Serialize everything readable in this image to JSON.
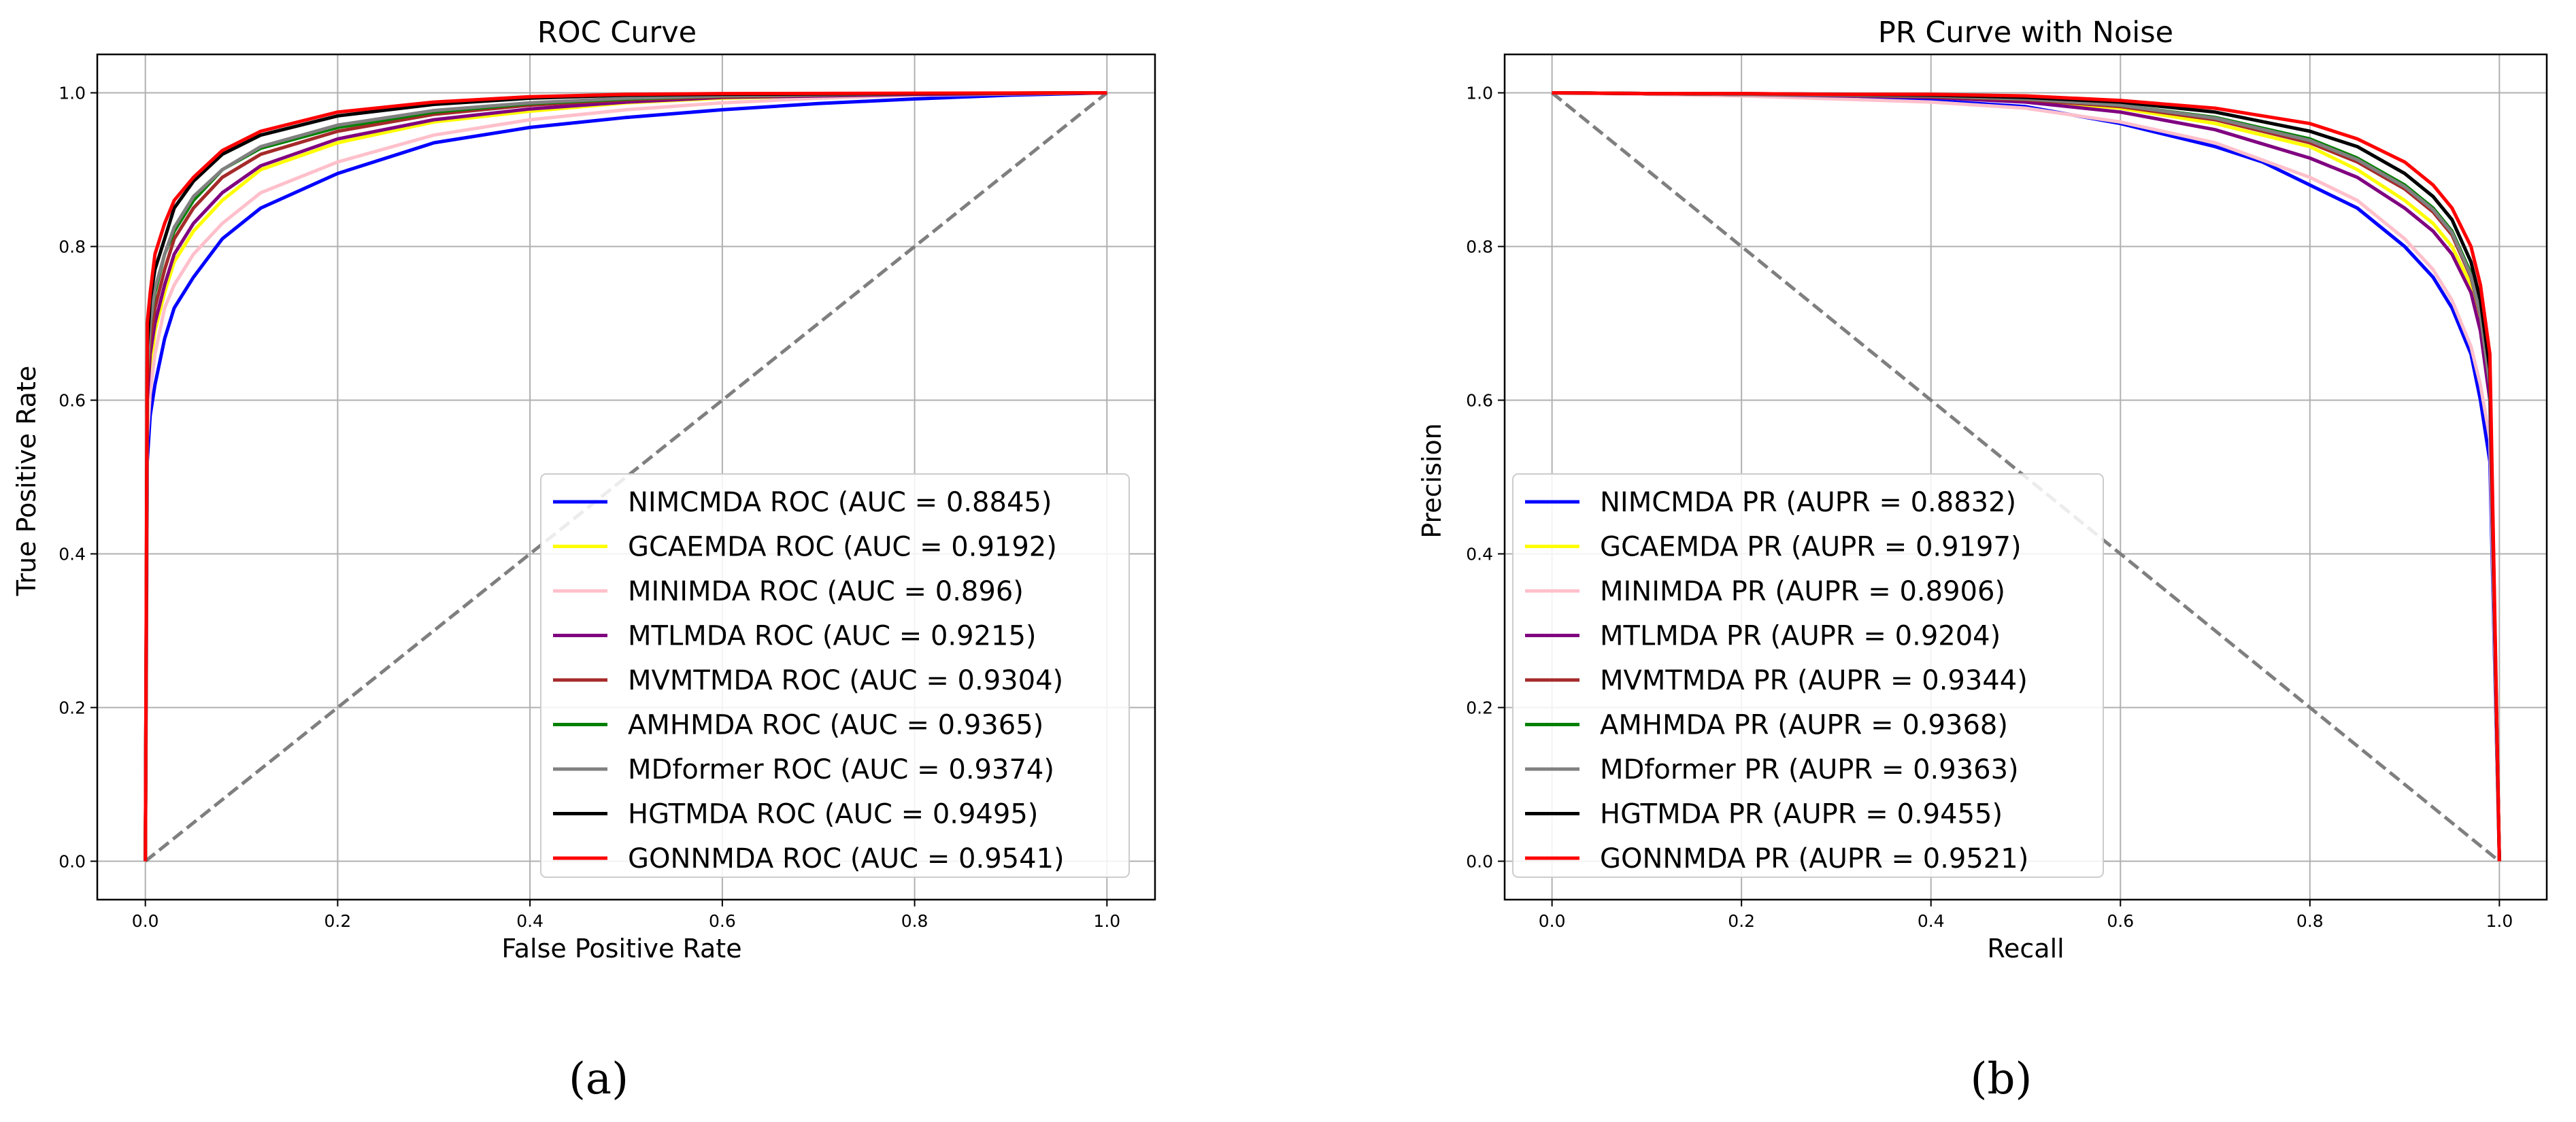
{
  "chart_data": [
    {
      "type": "line",
      "title": "ROC Curve",
      "xlabel": "False Positive Rate",
      "ylabel": "True Positive Rate",
      "xlim": [
        -0.05,
        1.05
      ],
      "ylim": [
        -0.05,
        1.05
      ],
      "xticks": [
        "0.0",
        "0.2",
        "0.4",
        "0.6",
        "0.8",
        "1.0"
      ],
      "yticks": [
        "0.0",
        "0.2",
        "0.4",
        "0.6",
        "0.8",
        "1.0"
      ],
      "grid": true,
      "legend_position": "lower-right",
      "caption": "(a)",
      "diagonal": {
        "x": [
          0,
          1
        ],
        "y": [
          0,
          1
        ],
        "color": "#7f7f7f",
        "style": "dashed"
      },
      "series": [
        {
          "name": "NIMCMDA ROC (AUC = 0.8845)",
          "color": "#0000ff",
          "x": [
            0,
            0.002,
            0.005,
            0.01,
            0.02,
            0.03,
            0.05,
            0.08,
            0.12,
            0.2,
            0.3,
            0.4,
            0.5,
            0.6,
            0.7,
            0.8,
            0.9,
            1.0
          ],
          "y": [
            0,
            0.52,
            0.58,
            0.62,
            0.68,
            0.72,
            0.76,
            0.81,
            0.85,
            0.895,
            0.935,
            0.955,
            0.968,
            0.978,
            0.986,
            0.992,
            0.997,
            1.0
          ]
        },
        {
          "name": "GCAEMDA ROC (AUC = 0.9192)",
          "color": "#ffff00",
          "x": [
            0,
            0.002,
            0.005,
            0.01,
            0.02,
            0.03,
            0.05,
            0.08,
            0.12,
            0.2,
            0.3,
            0.4,
            0.5,
            0.6,
            0.8,
            1.0
          ],
          "y": [
            0,
            0.58,
            0.64,
            0.69,
            0.74,
            0.78,
            0.82,
            0.86,
            0.9,
            0.935,
            0.962,
            0.976,
            0.987,
            0.993,
            0.998,
            1.0
          ]
        },
        {
          "name": "MINIMDA ROC (AUC = 0.896)",
          "color": "#ffc0cb",
          "x": [
            0,
            0.002,
            0.005,
            0.01,
            0.02,
            0.03,
            0.05,
            0.08,
            0.12,
            0.2,
            0.3,
            0.4,
            0.5,
            0.6,
            0.7,
            0.8,
            1.0
          ],
          "y": [
            0,
            0.55,
            0.61,
            0.66,
            0.72,
            0.75,
            0.79,
            0.83,
            0.87,
            0.91,
            0.945,
            0.965,
            0.978,
            0.987,
            0.993,
            0.997,
            1.0
          ]
        },
        {
          "name": "MTLMDA ROC (AUC = 0.9215)",
          "color": "#800080",
          "x": [
            0,
            0.002,
            0.005,
            0.01,
            0.02,
            0.03,
            0.05,
            0.08,
            0.12,
            0.2,
            0.3,
            0.4,
            0.5,
            0.6,
            0.8,
            1.0
          ],
          "y": [
            0,
            0.6,
            0.66,
            0.7,
            0.75,
            0.79,
            0.83,
            0.87,
            0.905,
            0.94,
            0.965,
            0.979,
            0.988,
            0.994,
            0.998,
            1.0
          ]
        },
        {
          "name": "MVMTMDA ROC (AUC = 0.9304)",
          "color": "#a52a2a",
          "x": [
            0,
            0.002,
            0.005,
            0.01,
            0.02,
            0.03,
            0.05,
            0.08,
            0.12,
            0.2,
            0.3,
            0.4,
            0.5,
            0.6,
            0.8,
            1.0
          ],
          "y": [
            0,
            0.62,
            0.68,
            0.72,
            0.77,
            0.81,
            0.85,
            0.89,
            0.92,
            0.95,
            0.972,
            0.984,
            0.991,
            0.995,
            0.999,
            1.0
          ]
        },
        {
          "name": "AMHMDA ROC (AUC = 0.9365)",
          "color": "#008000",
          "x": [
            0,
            0.002,
            0.005,
            0.01,
            0.02,
            0.03,
            0.05,
            0.08,
            0.12,
            0.2,
            0.3,
            0.4,
            0.5,
            0.6,
            0.8,
            1.0
          ],
          "y": [
            0,
            0.64,
            0.7,
            0.74,
            0.79,
            0.82,
            0.86,
            0.9,
            0.928,
            0.955,
            0.975,
            0.986,
            0.992,
            0.996,
            0.999,
            1.0
          ]
        },
        {
          "name": "MDformer ROC (AUC = 0.9374)",
          "color": "#808080",
          "x": [
            0,
            0.002,
            0.005,
            0.01,
            0.02,
            0.03,
            0.05,
            0.08,
            0.12,
            0.2,
            0.3,
            0.4,
            0.5,
            0.6,
            0.8,
            1.0
          ],
          "y": [
            0,
            0.64,
            0.7,
            0.745,
            0.79,
            0.825,
            0.865,
            0.9,
            0.93,
            0.958,
            0.977,
            0.987,
            0.993,
            0.996,
            0.999,
            1.0
          ]
        },
        {
          "name": "HGTMDA ROC (AUC = 0.9495)",
          "color": "#000000",
          "x": [
            0,
            0.002,
            0.005,
            0.01,
            0.02,
            0.03,
            0.05,
            0.08,
            0.12,
            0.2,
            0.3,
            0.4,
            0.5,
            0.6,
            0.8,
            1.0
          ],
          "y": [
            0,
            0.67,
            0.73,
            0.77,
            0.81,
            0.85,
            0.885,
            0.92,
            0.945,
            0.97,
            0.985,
            0.993,
            0.997,
            0.998,
            0.999,
            1.0
          ]
        },
        {
          "name": "GONNMDA ROC (AUC = 0.9541)",
          "color": "#ff0000",
          "x": [
            0,
            0.002,
            0.005,
            0.01,
            0.02,
            0.03,
            0.05,
            0.08,
            0.12,
            0.2,
            0.3,
            0.4,
            0.5,
            0.6,
            0.8,
            1.0
          ],
          "y": [
            0,
            0.7,
            0.74,
            0.79,
            0.83,
            0.86,
            0.89,
            0.925,
            0.95,
            0.975,
            0.988,
            0.995,
            0.998,
            0.999,
            0.9995,
            1.0
          ]
        }
      ]
    },
    {
      "type": "line",
      "title": "PR Curve with Noise",
      "xlabel": "Recall",
      "ylabel": "Precision",
      "xlim": [
        -0.05,
        1.05
      ],
      "ylim": [
        -0.05,
        1.05
      ],
      "xticks": [
        "0.0",
        "0.2",
        "0.4",
        "0.6",
        "0.8",
        "1.0"
      ],
      "yticks": [
        "0.0",
        "0.2",
        "0.4",
        "0.6",
        "0.8",
        "1.0"
      ],
      "grid": true,
      "legend_position": "lower-left",
      "caption": "(b)",
      "diagonal": {
        "x": [
          0,
          1
        ],
        "y": [
          1,
          0
        ],
        "color": "#7f7f7f",
        "style": "dashed"
      },
      "series": [
        {
          "name": "NIMCMDA PR (AUPR = 0.8832)",
          "color": "#0000ff",
          "x": [
            0,
            0.1,
            0.2,
            0.3,
            0.4,
            0.5,
            0.6,
            0.7,
            0.75,
            0.8,
            0.85,
            0.9,
            0.93,
            0.95,
            0.97,
            0.98,
            0.99,
            1.0
          ],
          "y": [
            1.0,
            0.999,
            0.997,
            0.994,
            0.99,
            0.982,
            0.96,
            0.93,
            0.91,
            0.88,
            0.85,
            0.8,
            0.76,
            0.72,
            0.66,
            0.6,
            0.52,
            0.0
          ]
        },
        {
          "name": "GCAEMDA PR (AUPR = 0.9197)",
          "color": "#ffff00",
          "x": [
            0,
            0.1,
            0.2,
            0.3,
            0.4,
            0.5,
            0.6,
            0.7,
            0.8,
            0.85,
            0.9,
            0.93,
            0.95,
            0.97,
            0.98,
            0.99,
            1.0
          ],
          "y": [
            1.0,
            0.999,
            0.998,
            0.997,
            0.995,
            0.99,
            0.98,
            0.96,
            0.93,
            0.9,
            0.86,
            0.83,
            0.8,
            0.75,
            0.7,
            0.6,
            0.0
          ]
        },
        {
          "name": "MINIMDA PR (AUPR = 0.8906)",
          "color": "#ffc0cb",
          "x": [
            0,
            0.1,
            0.2,
            0.3,
            0.4,
            0.5,
            0.6,
            0.7,
            0.8,
            0.85,
            0.9,
            0.93,
            0.95,
            0.97,
            0.98,
            0.99,
            1.0
          ],
          "y": [
            1.0,
            0.998,
            0.996,
            0.992,
            0.988,
            0.98,
            0.962,
            0.935,
            0.89,
            0.86,
            0.81,
            0.77,
            0.73,
            0.67,
            0.62,
            0.55,
            0.0
          ]
        },
        {
          "name": "MTLMDA PR (AUPR = 0.9204)",
          "color": "#800080",
          "x": [
            0,
            0.1,
            0.2,
            0.3,
            0.4,
            0.5,
            0.6,
            0.7,
            0.8,
            0.85,
            0.9,
            0.93,
            0.95,
            0.97,
            0.98,
            0.99,
            1.0
          ],
          "y": [
            1.0,
            0.999,
            0.998,
            0.996,
            0.994,
            0.988,
            0.975,
            0.952,
            0.915,
            0.89,
            0.85,
            0.82,
            0.79,
            0.74,
            0.69,
            0.6,
            0.0
          ]
        },
        {
          "name": "MVMTMDA PR (AUPR = 0.9344)",
          "color": "#a52a2a",
          "x": [
            0,
            0.1,
            0.2,
            0.3,
            0.4,
            0.5,
            0.6,
            0.7,
            0.8,
            0.85,
            0.9,
            0.93,
            0.95,
            0.97,
            0.98,
            0.99,
            1.0
          ],
          "y": [
            1.0,
            0.999,
            0.998,
            0.997,
            0.995,
            0.991,
            0.982,
            0.965,
            0.935,
            0.91,
            0.875,
            0.845,
            0.815,
            0.76,
            0.71,
            0.62,
            0.0
          ]
        },
        {
          "name": "AMHMDA PR (AUPR = 0.9368)",
          "color": "#008000",
          "x": [
            0,
            0.1,
            0.2,
            0.3,
            0.4,
            0.5,
            0.6,
            0.7,
            0.8,
            0.85,
            0.9,
            0.93,
            0.95,
            0.97,
            0.98,
            0.99,
            1.0
          ],
          "y": [
            1.0,
            0.999,
            0.998,
            0.997,
            0.996,
            0.992,
            0.984,
            0.968,
            0.94,
            0.915,
            0.88,
            0.85,
            0.82,
            0.765,
            0.715,
            0.62,
            0.0
          ]
        },
        {
          "name": "MDformer PR (AUPR = 0.9363)",
          "color": "#808080",
          "x": [
            0,
            0.1,
            0.2,
            0.3,
            0.4,
            0.5,
            0.6,
            0.7,
            0.8,
            0.85,
            0.9,
            0.93,
            0.95,
            0.97,
            0.98,
            0.99,
            1.0
          ],
          "y": [
            1.0,
            0.999,
            0.998,
            0.997,
            0.996,
            0.992,
            0.984,
            0.967,
            0.938,
            0.913,
            0.878,
            0.848,
            0.818,
            0.762,
            0.712,
            0.62,
            0.0
          ]
        },
        {
          "name": "HGTMDA PR (AUPR = 0.9455)",
          "color": "#000000",
          "x": [
            0,
            0.1,
            0.2,
            0.3,
            0.4,
            0.5,
            0.6,
            0.7,
            0.8,
            0.85,
            0.9,
            0.93,
            0.95,
            0.97,
            0.98,
            0.99,
            1.0
          ],
          "y": [
            1.0,
            0.999,
            0.999,
            0.998,
            0.997,
            0.994,
            0.988,
            0.975,
            0.95,
            0.93,
            0.895,
            0.865,
            0.835,
            0.78,
            0.73,
            0.64,
            0.0
          ]
        },
        {
          "name": "GONNMDA PR (AUPR = 0.9521)",
          "color": "#ff0000",
          "x": [
            0,
            0.1,
            0.2,
            0.3,
            0.4,
            0.5,
            0.6,
            0.7,
            0.8,
            0.85,
            0.9,
            0.93,
            0.95,
            0.97,
            0.98,
            0.99,
            1.0
          ],
          "y": [
            1.0,
            0.999,
            0.999,
            0.998,
            0.998,
            0.996,
            0.99,
            0.98,
            0.96,
            0.94,
            0.91,
            0.88,
            0.85,
            0.8,
            0.75,
            0.66,
            0.0
          ]
        }
      ]
    }
  ]
}
